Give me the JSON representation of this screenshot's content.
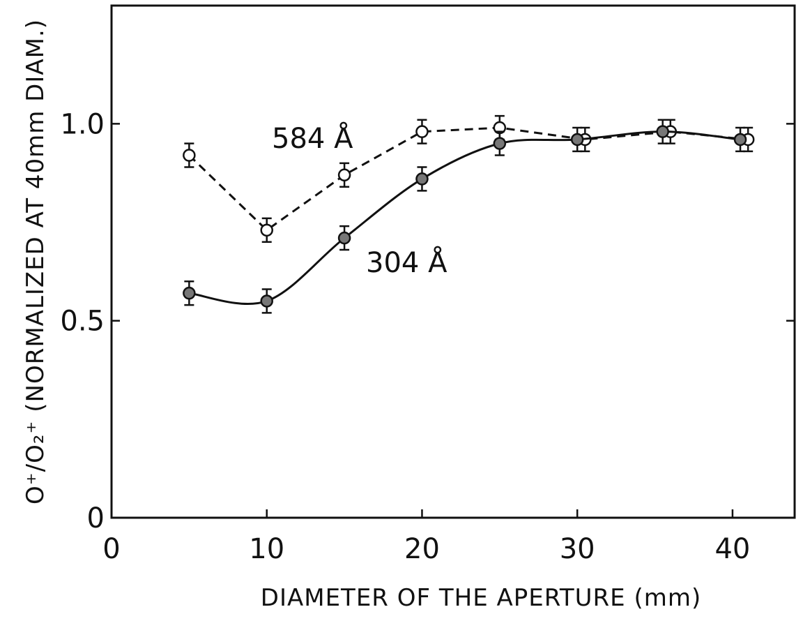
{
  "chart_data": {
    "type": "line",
    "xlabel": "DIAMETER OF THE APERTURE (mm)",
    "ylabel": "O⁺/O₂⁺ (NORMALIZED AT 40mm DIAM.)",
    "xlim": [
      0,
      44
    ],
    "ylim": [
      0,
      1.3
    ],
    "xticks": [
      0,
      10,
      20,
      30,
      40
    ],
    "yticks": [
      0,
      0.5,
      {
        "value": 1,
        "label": "1.0"
      }
    ],
    "series": [
      {
        "name": "584 Å",
        "color": "#111111",
        "style": "dashed",
        "marker": "open",
        "x": [
          5,
          10,
          15,
          20,
          25,
          30.5,
          36,
          41
        ],
        "values": [
          0.92,
          0.73,
          0.87,
          0.98,
          0.99,
          0.96,
          0.98,
          0.96
        ],
        "errors": [
          0.03,
          0.03,
          0.03,
          0.03,
          0.03,
          0.03,
          0.03,
          0.03
        ]
      },
      {
        "name": "304 Å",
        "color": "#111111",
        "style": "solid",
        "marker": "filled",
        "x": [
          5,
          10,
          15,
          20,
          25,
          30,
          35.5,
          40.5
        ],
        "values": [
          0.57,
          0.55,
          0.71,
          0.86,
          0.95,
          0.96,
          0.98,
          0.96
        ],
        "errors": [
          0.03,
          0.03,
          0.03,
          0.03,
          0.03,
          0.03,
          0.03,
          0.03
        ]
      }
    ]
  }
}
